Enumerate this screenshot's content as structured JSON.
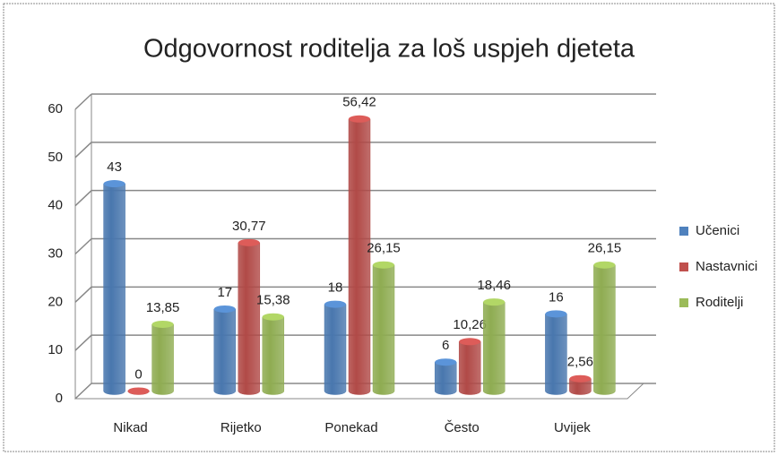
{
  "chart_data": {
    "type": "bar3d",
    "title": "Odgovornost roditelja za loš uspjeh djeteta",
    "categories": [
      "Nikad",
      "Rijetko",
      "Ponekad",
      "Često",
      "Uvijek"
    ],
    "series": [
      {
        "name": "Učenici",
        "color": "#4f81bd",
        "values": [
          43,
          17,
          18,
          6,
          16
        ],
        "value_labels": [
          "43",
          "17",
          "18",
          "6",
          "16"
        ]
      },
      {
        "name": "Nastavnici",
        "color": "#c0504d",
        "values": [
          0,
          30.77,
          56.42,
          10.26,
          2.56
        ],
        "value_labels": [
          "0",
          "30,77",
          "56,42",
          "10,26",
          "2,56"
        ]
      },
      {
        "name": "Roditelji",
        "color": "#9bbb59",
        "values": [
          13.85,
          15.38,
          26.15,
          18.46,
          26.15
        ],
        "value_labels": [
          "13,85",
          "15,38",
          "26,15",
          "18,46",
          "26,15"
        ]
      }
    ],
    "ylim": [
      0,
      60
    ],
    "yticks": [
      0,
      10,
      20,
      30,
      40,
      50,
      60
    ],
    "grid": true,
    "legend": "right"
  }
}
